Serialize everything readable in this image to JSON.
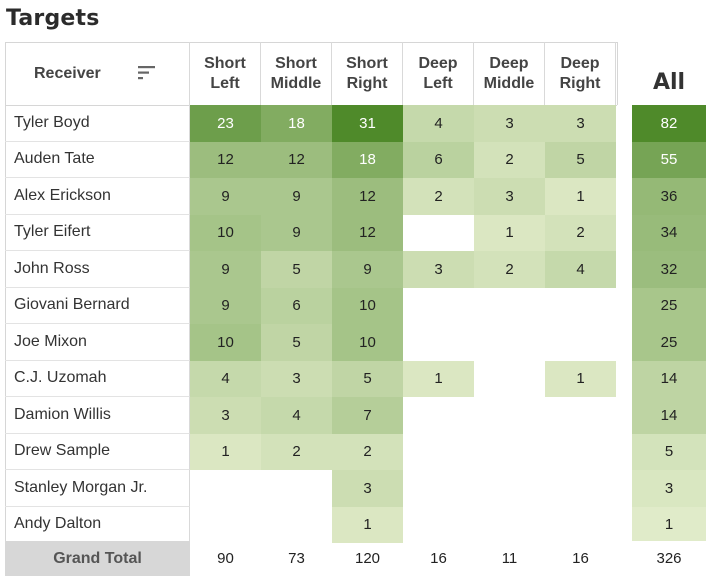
{
  "title": "Targets",
  "header": {
    "receiver_label": "Receiver",
    "columns": [
      "Short\nLeft",
      "Short\nMiddle",
      "Short\nRight",
      "Deep\nLeft",
      "Deep\nMiddle",
      "Deep\nRight"
    ],
    "all_label": "All"
  },
  "rows": [
    {
      "name": "Tyler Boyd",
      "values": [
        23,
        18,
        31,
        4,
        3,
        3
      ],
      "all": 82
    },
    {
      "name": "Auden Tate",
      "values": [
        12,
        12,
        18,
        6,
        2,
        5
      ],
      "all": 55
    },
    {
      "name": "Alex Erickson",
      "values": [
        9,
        9,
        12,
        2,
        3,
        1
      ],
      "all": 36
    },
    {
      "name": "Tyler Eifert",
      "values": [
        10,
        9,
        12,
        null,
        1,
        2
      ],
      "all": 34
    },
    {
      "name": "John Ross",
      "values": [
        9,
        5,
        9,
        3,
        2,
        4
      ],
      "all": 32
    },
    {
      "name": "Giovani Bernard",
      "values": [
        9,
        6,
        10,
        null,
        null,
        null
      ],
      "all": 25
    },
    {
      "name": "Joe Mixon",
      "values": [
        10,
        5,
        10,
        null,
        null,
        null
      ],
      "all": 25
    },
    {
      "name": "C.J. Uzomah",
      "values": [
        4,
        3,
        5,
        1,
        null,
        1
      ],
      "all": 14
    },
    {
      "name": "Damion Willis",
      "values": [
        3,
        4,
        7,
        null,
        null,
        null
      ],
      "all": 14
    },
    {
      "name": "Drew Sample",
      "values": [
        1,
        2,
        2,
        null,
        null,
        null
      ],
      "all": 5
    },
    {
      "name": "Stanley Morgan Jr.",
      "values": [
        null,
        null,
        3,
        null,
        null,
        null
      ],
      "all": 3
    },
    {
      "name": "Andy Dalton",
      "values": [
        null,
        null,
        1,
        null,
        null,
        null
      ],
      "all": 1
    }
  ],
  "grand_total": {
    "label": "Grand Total",
    "values": [
      90,
      73,
      120,
      16,
      11,
      16
    ],
    "all": 326
  },
  "colors": {
    "heat_low": "#e6efcf",
    "heat_high": "#4f8a2a",
    "grand_total_bg": "#d7d7d7",
    "grid": "#d6d6d6"
  },
  "icons": {
    "sort": "sort-lines-icon"
  }
}
